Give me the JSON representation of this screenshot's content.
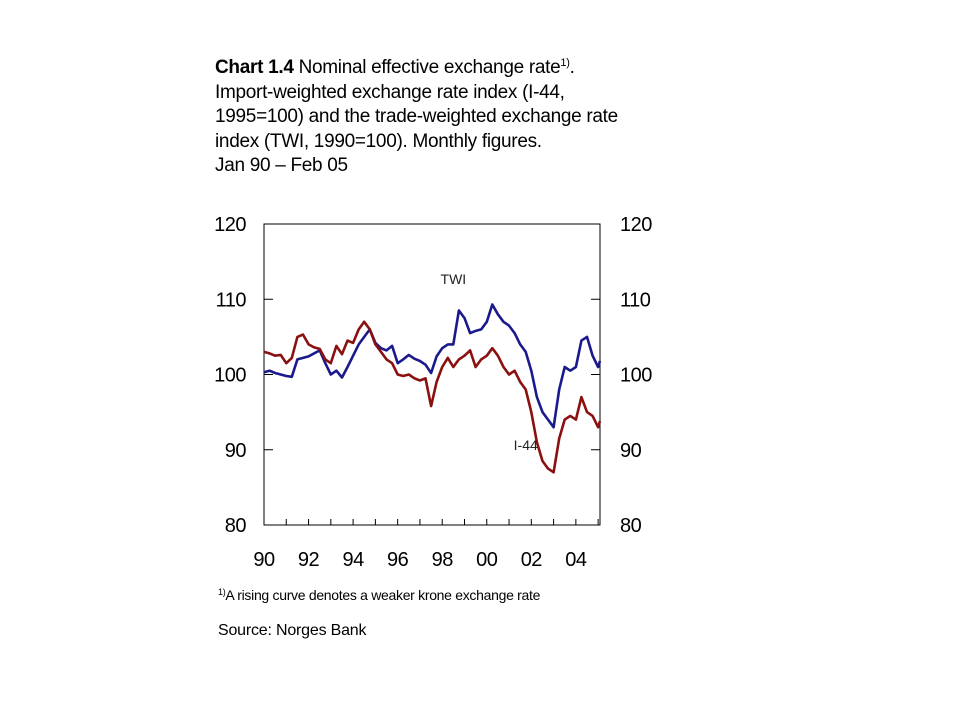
{
  "title": {
    "bold": "Chart 1.4",
    "main": " Nominal effective exchange rate",
    "sup": "1)",
    "after_sup": ".",
    "line2": "Import-weighted exchange rate index (I-44,",
    "line3": "1995=100) and the trade-weighted exchange rate",
    "line4": "index (TWI, 1990=100). Monthly figures.",
    "line5": "Jan 90 – Feb 05"
  },
  "footnote": {
    "sup": "1)",
    "text": "A rising curve denotes a weaker krone exchange rate"
  },
  "source": "Source: Norges Bank",
  "chart_data": {
    "type": "line",
    "x_start": "1990-01",
    "x_end": "2005-02",
    "ylim": [
      80,
      120
    ],
    "y_ticks": [
      80,
      90,
      100,
      110,
      120
    ],
    "y_tick_labels": [
      "80",
      "90",
      "100",
      "110",
      "120"
    ],
    "x_tick_labels": [
      "90",
      "92",
      "94",
      "96",
      "98",
      "00",
      "02",
      "04"
    ],
    "grid": false,
    "colors": {
      "TWI": "#1a1a8c",
      "I-44": "#8b1010"
    },
    "series": [
      {
        "name": "TWI",
        "points": [
          [
            "1990-01",
            100.3
          ],
          [
            "1990-04",
            100.5
          ],
          [
            "1990-07",
            100.2
          ],
          [
            "1990-10",
            100.0
          ],
          [
            "1991-01",
            99.8
          ],
          [
            "1991-04",
            99.7
          ],
          [
            "1991-07",
            102.0
          ],
          [
            "1991-10",
            102.2
          ],
          [
            "1992-01",
            102.4
          ],
          [
            "1992-04",
            102.8
          ],
          [
            "1992-07",
            103.2
          ],
          [
            "1992-10",
            101.5
          ],
          [
            "1993-01",
            100.0
          ],
          [
            "1993-04",
            100.5
          ],
          [
            "1993-07",
            99.6
          ],
          [
            "1993-10",
            101.0
          ],
          [
            "1994-01",
            102.5
          ],
          [
            "1994-04",
            104.0
          ],
          [
            "1994-07",
            105.0
          ],
          [
            "1994-10",
            106.0
          ],
          [
            "1995-01",
            104.2
          ],
          [
            "1995-04",
            103.5
          ],
          [
            "1995-07",
            103.2
          ],
          [
            "1995-10",
            103.8
          ],
          [
            "1996-01",
            101.5
          ],
          [
            "1996-04",
            102.0
          ],
          [
            "1996-07",
            102.6
          ],
          [
            "1996-10",
            102.1
          ],
          [
            "1997-01",
            101.8
          ],
          [
            "1997-04",
            101.3
          ],
          [
            "1997-07",
            100.2
          ],
          [
            "1997-10",
            102.4
          ],
          [
            "1998-01",
            103.5
          ],
          [
            "1998-04",
            104.0
          ],
          [
            "1998-07",
            104.0
          ],
          [
            "1998-10",
            108.5
          ],
          [
            "1999-01",
            107.5
          ],
          [
            "1999-04",
            105.5
          ],
          [
            "1999-07",
            105.8
          ],
          [
            "1999-10",
            106.0
          ],
          [
            "2000-01",
            107.0
          ],
          [
            "2000-04",
            109.3
          ],
          [
            "2000-07",
            108.0
          ],
          [
            "2000-10",
            107.0
          ],
          [
            "2001-01",
            106.5
          ],
          [
            "2001-04",
            105.5
          ],
          [
            "2001-07",
            104.0
          ],
          [
            "2001-10",
            103.0
          ],
          [
            "2002-01",
            100.5
          ],
          [
            "2002-04",
            97.0
          ],
          [
            "2002-07",
            95.0
          ],
          [
            "2002-10",
            94.0
          ],
          [
            "2003-01",
            93.0
          ],
          [
            "2003-04",
            98.0
          ],
          [
            "2003-07",
            101.0
          ],
          [
            "2003-10",
            100.5
          ],
          [
            "2004-01",
            101.0
          ],
          [
            "2004-04",
            104.5
          ],
          [
            "2004-07",
            105.0
          ],
          [
            "2004-10",
            102.5
          ],
          [
            "2005-01",
            101.0
          ],
          [
            "2005-02",
            101.8
          ]
        ]
      },
      {
        "name": "I-44",
        "points": [
          [
            "1990-01",
            103.0
          ],
          [
            "1990-04",
            102.8
          ],
          [
            "1990-07",
            102.5
          ],
          [
            "1990-10",
            102.6
          ],
          [
            "1991-01",
            101.5
          ],
          [
            "1991-04",
            102.2
          ],
          [
            "1991-07",
            105.0
          ],
          [
            "1991-10",
            105.3
          ],
          [
            "1992-01",
            104.0
          ],
          [
            "1992-04",
            103.6
          ],
          [
            "1992-07",
            103.4
          ],
          [
            "1992-10",
            102.0
          ],
          [
            "1993-01",
            101.5
          ],
          [
            "1993-04",
            103.8
          ],
          [
            "1993-07",
            102.7
          ],
          [
            "1993-10",
            104.5
          ],
          [
            "1994-01",
            104.2
          ],
          [
            "1994-04",
            106.0
          ],
          [
            "1994-07",
            107.0
          ],
          [
            "1994-10",
            106.0
          ],
          [
            "1995-01",
            104.0
          ],
          [
            "1995-04",
            103.0
          ],
          [
            "1995-07",
            102.0
          ],
          [
            "1995-10",
            101.5
          ],
          [
            "1996-01",
            100.0
          ],
          [
            "1996-04",
            99.8
          ],
          [
            "1996-07",
            100.0
          ],
          [
            "1996-10",
            99.5
          ],
          [
            "1997-01",
            99.2
          ],
          [
            "1997-04",
            99.5
          ],
          [
            "1997-07",
            95.8
          ],
          [
            "1997-10",
            99.0
          ],
          [
            "1998-01",
            101.0
          ],
          [
            "1998-04",
            102.2
          ],
          [
            "1998-07",
            101.0
          ],
          [
            "1998-10",
            102.0
          ],
          [
            "1999-01",
            102.5
          ],
          [
            "1999-04",
            103.2
          ],
          [
            "1999-07",
            101.0
          ],
          [
            "1999-10",
            102.0
          ],
          [
            "2000-01",
            102.5
          ],
          [
            "2000-04",
            103.5
          ],
          [
            "2000-07",
            102.5
          ],
          [
            "2000-10",
            101.0
          ],
          [
            "2001-01",
            100.0
          ],
          [
            "2001-04",
            100.5
          ],
          [
            "2001-07",
            99.0
          ],
          [
            "2001-10",
            98.0
          ],
          [
            "2002-01",
            95.0
          ],
          [
            "2002-04",
            91.0
          ],
          [
            "2002-07",
            88.5
          ],
          [
            "2002-10",
            87.5
          ],
          [
            "2003-01",
            87.0
          ],
          [
            "2003-04",
            91.5
          ],
          [
            "2003-07",
            94.0
          ],
          [
            "2003-10",
            94.5
          ],
          [
            "2004-01",
            94.0
          ],
          [
            "2004-04",
            97.0
          ],
          [
            "2004-07",
            95.0
          ],
          [
            "2004-10",
            94.5
          ],
          [
            "2005-01",
            93.0
          ],
          [
            "2005-02",
            93.8
          ]
        ]
      }
    ],
    "annotations": [
      {
        "text": "TWI",
        "date": "1998-07",
        "y": 112.0
      },
      {
        "text": "I-44",
        "date": "2001-10",
        "y": 90.0
      }
    ]
  }
}
